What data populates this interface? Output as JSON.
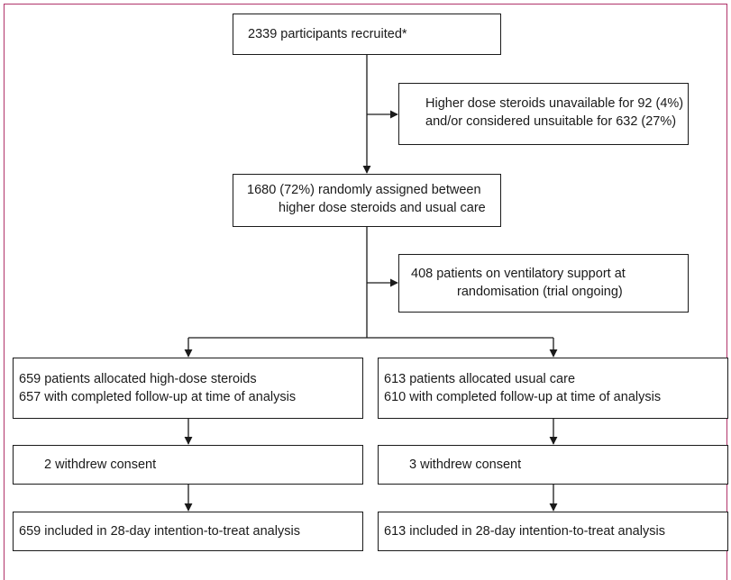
{
  "flow": {
    "recruited": "2339 participants recruited*",
    "excluded": {
      "line1": "Higher dose steroids unavailable  for 92 (4%)",
      "line2": "and/or considered unsuitable for 632 (27%)"
    },
    "randomised": {
      "line1": "1680 (72%) randomly assigned between",
      "line2": "higher dose steroids and usual care"
    },
    "ventilatory": {
      "line1": "408 patients  on ventilatory support at",
      "line2": "randomisation (trial ongoing)"
    },
    "left_arm": {
      "allocated_line1": "659 patients allocated high-dose steroids",
      "allocated_line2": "657 with completed follow-up at time of analysis",
      "withdrew": "2 withdrew consent",
      "analysis": "659 included in 28-day intention-to-treat analysis"
    },
    "right_arm": {
      "allocated_line1": "613 patients allocated usual care",
      "allocated_line2": "610 with completed follow-up at time of analysis",
      "withdrew": "3 withdrew consent",
      "analysis": "613 included in 28-day intention-to-treat analysis"
    }
  }
}
